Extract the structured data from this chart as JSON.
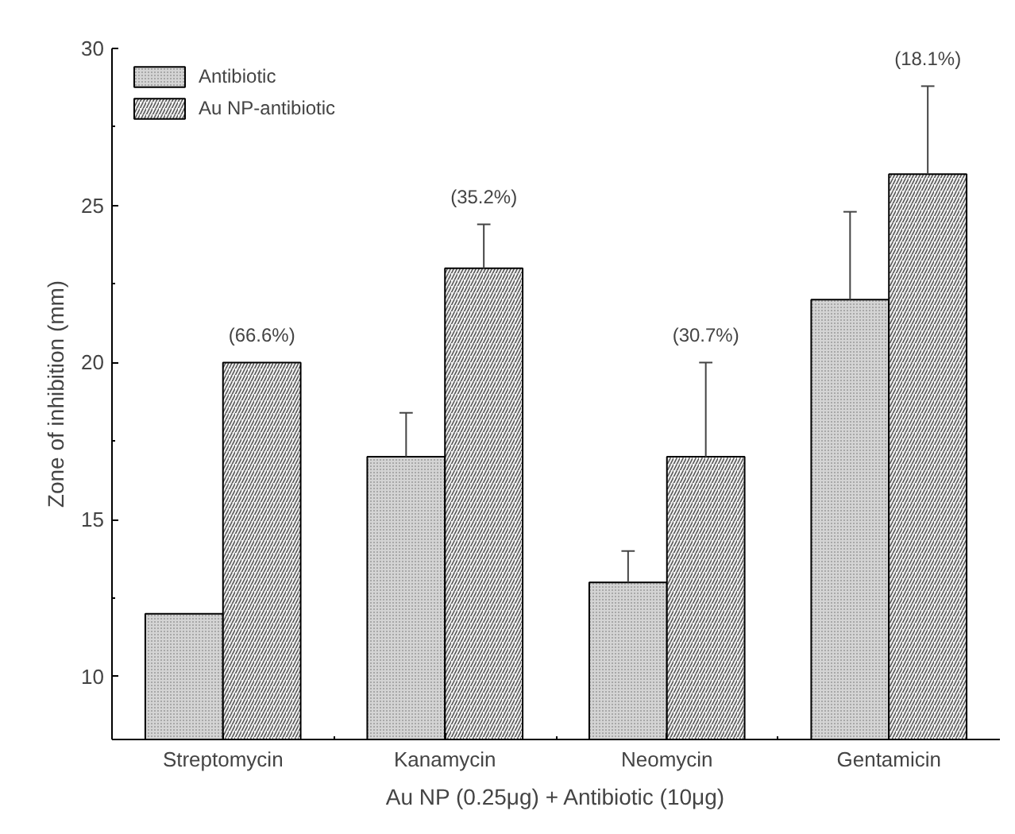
{
  "chart_data": {
    "type": "bar",
    "xlabel": "Au NP (0.25μg) + Antibiotic (10μg)",
    "ylabel": "Zone of inhibition (mm)",
    "categories": [
      "Streptomycin",
      "Kanamycin",
      "Neomycin",
      "Gentamicin"
    ],
    "series": [
      {
        "name": "Antibiotic",
        "color": "#d4d4d4",
        "values": [
          12,
          17,
          13,
          22
        ],
        "errors": [
          null,
          [
            17,
            18.4
          ],
          [
            13,
            14.0
          ],
          [
            22,
            24.8
          ]
        ]
      },
      {
        "name": "Au NP-antibiotic",
        "color": "#f2f2f2",
        "values": [
          20,
          23,
          17,
          26
        ],
        "errors": [
          null,
          [
            23,
            24.4
          ],
          [
            17,
            20.0
          ],
          [
            26,
            28.8
          ]
        ]
      }
    ],
    "annotations": [
      "(66.6%)",
      "(35.2%)",
      "(30.7%)",
      "(18.1%)"
    ],
    "ylim": [
      8,
      30
    ],
    "yticks": [
      10,
      15,
      20,
      25,
      30
    ],
    "grid": false,
    "legend": "top left"
  }
}
